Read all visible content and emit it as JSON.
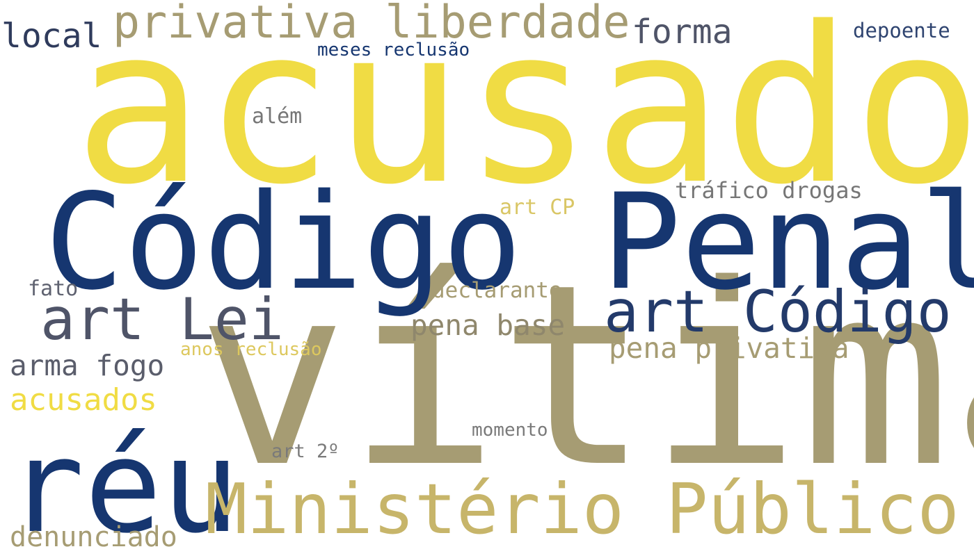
{
  "palette": {
    "yellow": "#f0dc44",
    "khaki": "#a69c73",
    "tan": "#c7b56a",
    "navy": "#163670",
    "slate": "#4f5468",
    "gray": "#767676"
  },
  "words": [
    {
      "id": "acusado",
      "text": "acusado",
      "color": "#f0dc44"
    },
    {
      "id": "vitima",
      "text": "vítima",
      "color": "#a69c73"
    },
    {
      "id": "codigo-penal",
      "text": "Código Penal",
      "color": "#163670"
    },
    {
      "id": "reu",
      "text": "réu",
      "color": "#163670"
    },
    {
      "id": "ministerio-publico",
      "text": "Ministério Público",
      "color": "#c7b56a"
    },
    {
      "id": "art-codigo",
      "text": "art Código",
      "color": "#233a6a"
    },
    {
      "id": "art-lei",
      "text": "art Lei",
      "color": "#4f5468"
    },
    {
      "id": "privativa-liberdade",
      "text": "privativa liberdade",
      "color": "#a69c73"
    },
    {
      "id": "forma",
      "text": "forma",
      "color": "#4f5468"
    },
    {
      "id": "local",
      "text": "local",
      "color": "#2f3b5c"
    },
    {
      "id": "depoente",
      "text": "depoente",
      "color": "#2f4470"
    },
    {
      "id": "meses-reclusao",
      "text": "meses reclusão",
      "color": "#163670"
    },
    {
      "id": "alem",
      "text": "além",
      "color": "#767676"
    },
    {
      "id": "trafico-drogas",
      "text": "tráfico drogas",
      "color": "#767676"
    },
    {
      "id": "art-cp",
      "text": "art CP",
      "color": "#d9c665"
    },
    {
      "id": "fato",
      "text": "fato",
      "color": "#5f6270"
    },
    {
      "id": "declarante",
      "text": "declarante",
      "color": "#a69c73"
    },
    {
      "id": "pena-base",
      "text": "pena base",
      "color": "#8f876c"
    },
    {
      "id": "pena-privativa",
      "text": "pena privativa",
      "color": "#a69c73"
    },
    {
      "id": "anos-reclusao",
      "text": "anos reclusão",
      "color": "#ddc85e"
    },
    {
      "id": "arma-fogo",
      "text": "arma fogo",
      "color": "#5a5d6b"
    },
    {
      "id": "acusados",
      "text": "acusados",
      "color": "#f0dc44"
    },
    {
      "id": "momento",
      "text": "momento",
      "color": "#7a7a7a"
    },
    {
      "id": "art-2",
      "text": "art 2º",
      "color": "#7a7a7a"
    },
    {
      "id": "denunciado",
      "text": "denunciado",
      "color": "#a69c73"
    }
  ]
}
